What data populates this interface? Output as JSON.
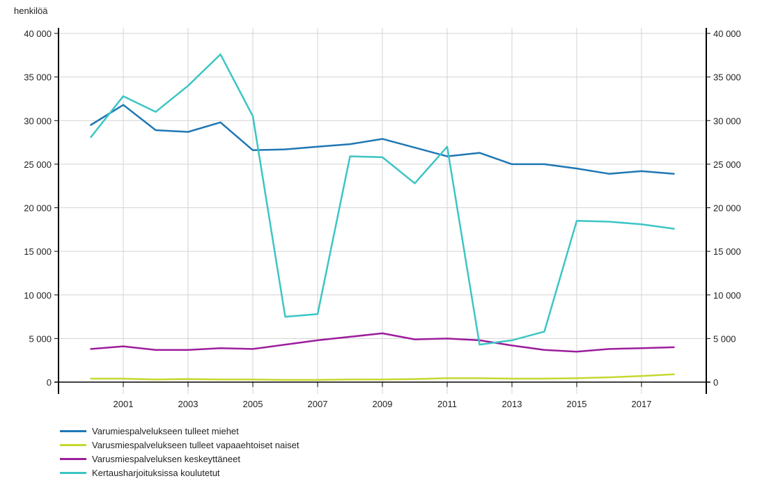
{
  "chart_data": {
    "type": "line",
    "ylabel": "henkilöä",
    "ylim": [
      0,
      40000
    ],
    "yticks": [
      0,
      5000,
      10000,
      15000,
      20000,
      25000,
      30000,
      35000,
      40000
    ],
    "ytick_labels": [
      "0",
      "5 000",
      "10 000",
      "15 000",
      "20 000",
      "25 000",
      "30 000",
      "35 000",
      "40 000"
    ],
    "xlim": [
      1999,
      2019
    ],
    "xticks": [
      2001,
      2003,
      2005,
      2007,
      2009,
      2011,
      2013,
      2015,
      2017
    ],
    "x": [
      2000,
      2001,
      2002,
      2003,
      2004,
      2005,
      2006,
      2007,
      2008,
      2009,
      2010,
      2011,
      2012,
      2013,
      2014,
      2015,
      2016,
      2017,
      2018
    ],
    "grid": true,
    "legend_position": "bottom-left",
    "series": [
      {
        "name": "Varumiespalvelukseen tulleet miehet",
        "color": "#1f77b4",
        "values": [
          29500,
          31800,
          28900,
          28700,
          29800,
          26600,
          26700,
          27000,
          27300,
          27900,
          26900,
          25900,
          26300,
          25000,
          25000,
          24500,
          23900,
          24200,
          23900
        ]
      },
      {
        "name": "Varusmiespalvelukseen tulleet vapaaehtoiset naiset",
        "color": "#c5d82f",
        "values": [
          400,
          400,
          300,
          350,
          300,
          300,
          250,
          250,
          300,
          300,
          350,
          450,
          450,
          400,
          400,
          450,
          550,
          700,
          900
        ]
      },
      {
        "name": "Varusmiespalveluksen keskeyttäneet",
        "color": "#9c1d9c",
        "values": [
          3800,
          4100,
          3700,
          3700,
          3900,
          3800,
          4300,
          4800,
          5200,
          5600,
          4900,
          5000,
          4800,
          4200,
          3700,
          3500,
          3800,
          3900,
          4000
        ]
      },
      {
        "name": "Kertausharjoituksissa koulutetut",
        "color": "#3cc5c5",
        "values": [
          28100,
          32800,
          31000,
          34000,
          37600,
          30500,
          7500,
          7800,
          25900,
          25800,
          22800,
          27000,
          4300,
          4800,
          5800,
          18500,
          18400,
          18100,
          17600
        ]
      }
    ]
  }
}
